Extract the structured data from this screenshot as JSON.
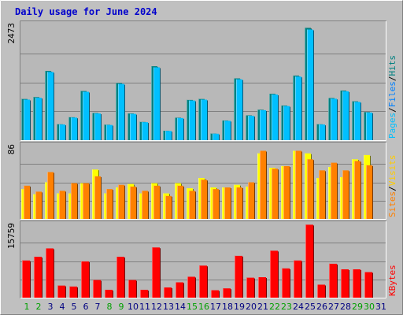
{
  "chart_data": {
    "type": "bar",
    "title": "Daily usage for June 2024",
    "categories": [
      "1",
      "2",
      "3",
      "4",
      "5",
      "6",
      "7",
      "8",
      "9",
      "10",
      "11",
      "12",
      "13",
      "14",
      "15",
      "16",
      "17",
      "18",
      "19",
      "20",
      "21",
      "22",
      "23",
      "24",
      "25",
      "26",
      "27",
      "28",
      "29",
      "30",
      "31"
    ],
    "weekend_days": [
      "1",
      "2",
      "8",
      "9",
      "15",
      "16",
      "22",
      "23",
      "29",
      "30"
    ],
    "colors": {
      "background": "#c0c0c0",
      "plot_bg": "#b8b8b8",
      "title": "#0000cc",
      "hits": "#00c0ff",
      "files": "#008080",
      "pages": "#00ffff",
      "visits": "#ffff00",
      "sites": "#ff8000",
      "kbytes": "#ff0000",
      "weekend": "#00a000",
      "weekday": "#000080"
    },
    "panels": [
      {
        "id": "hits-files-pages",
        "max_label": "2473",
        "ylim": [
          0,
          2473
        ],
        "series": [
          {
            "name": "Hits",
            "values": [
              880,
              920,
              1480,
              340,
              490,
              1050,
              580,
              330,
              1220,
              570,
              390,
              1580,
              200,
              480,
              860,
              880,
              140,
              420,
              1320,
              530,
              650,
              990,
              740,
              1380,
              2400,
              340,
              900,
              1060,
              830,
              600,
              0
            ]
          },
          {
            "name": "Files",
            "values": [
              880,
              920,
              1480,
              340,
              490,
              1050,
              580,
              330,
              1220,
              570,
              390,
              1580,
              200,
              480,
              860,
              880,
              140,
              420,
              1320,
              530,
              650,
              990,
              740,
              1380,
              2400,
              340,
              900,
              1060,
              830,
              600,
              0
            ]
          },
          {
            "name": "Pages",
            "values": [
              340,
              350,
              420,
              150,
              180,
              310,
              200,
              140,
              420,
              230,
              170,
              470,
              90,
              200,
              310,
              330,
              60,
              170,
              410,
              210,
              240,
              330,
              260,
              430,
              620,
              150,
              320,
              350,
              280,
              220,
              0
            ]
          }
        ],
        "legend": [
          "Pages",
          "Files",
          "Hits"
        ]
      },
      {
        "id": "visits-sites",
        "max_label": "86",
        "ylim": [
          0,
          86
        ],
        "series": [
          {
            "name": "Visits",
            "values": [
              35,
              29,
              43,
              30,
              30,
              42,
              58,
              30,
              37,
              41,
              30,
              42,
              30,
              42,
              36,
              48,
              37,
              37,
              40,
              38,
              77,
              60,
              62,
              80,
              77,
              48,
              61,
              49,
              70,
              75,
              0
            ]
          },
          {
            "name": "Sites",
            "values": [
              39,
              32,
              55,
              33,
              42,
              42,
              50,
              35,
              40,
              38,
              33,
              39,
              27,
              39,
              33,
              46,
              35,
              37,
              37,
              43,
              80,
              59,
              62,
              80,
              70,
              57,
              66,
              57,
              68,
              63,
              0
            ]
          }
        ],
        "legend": [
          "Sites",
          "Visits"
        ]
      },
      {
        "id": "kbytes",
        "max_label": "15759",
        "ylim": [
          0,
          15759
        ],
        "series": [
          {
            "name": "KBytes",
            "values": [
              8000,
              8800,
              10600,
              2600,
              2400,
              7800,
              3800,
              1700,
              8800,
              3800,
              1700,
              10800,
              2200,
              3300,
              4500,
              6900,
              1600,
              2000,
              9000,
              4300,
              4400,
              10100,
              6300,
              8000,
              15700,
              2800,
              7300,
              6100,
              6100,
              5500,
              0
            ]
          }
        ],
        "legend": [
          "KBytes"
        ]
      }
    ]
  }
}
